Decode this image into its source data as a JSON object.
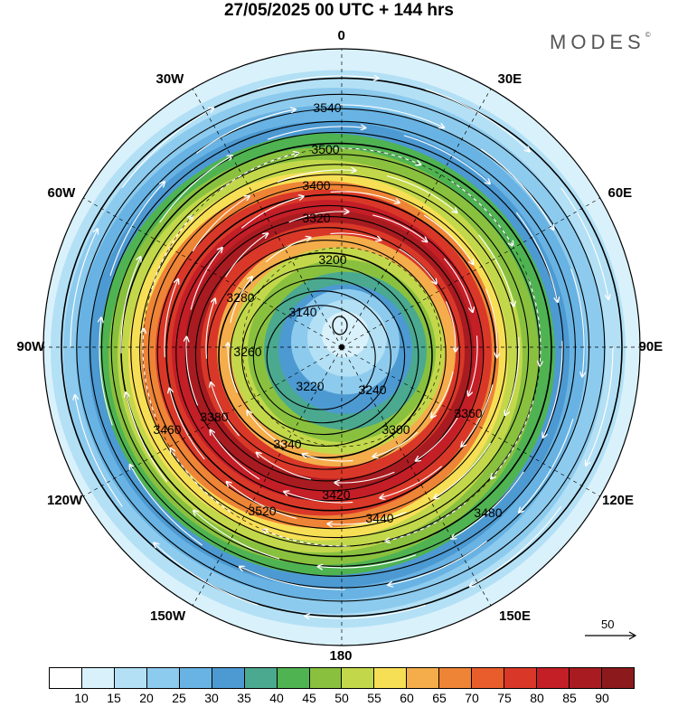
{
  "title": "27/05/2025  00 UTC  + 144 hrs",
  "brand": "MODES",
  "brand_mark": "©",
  "longitude_labels": [
    "0",
    "30E",
    "60E",
    "90E",
    "120E",
    "150E",
    "180",
    "150W",
    "120W",
    "90W",
    "60W",
    "30W"
  ],
  "contour_labels": [
    "3140",
    "3200",
    "3220",
    "3240",
    "3260",
    "3280",
    "3300",
    "3320",
    "3340",
    "3360",
    "3380",
    "3400",
    "3420",
    "3440",
    "3460",
    "3480",
    "3500",
    "3520",
    "3540"
  ],
  "wind_reference": {
    "label": "50"
  },
  "colorbar": {
    "ticks": [
      "10",
      "15",
      "20",
      "25",
      "30",
      "35",
      "40",
      "45",
      "50",
      "55",
      "60",
      "65",
      "70",
      "75",
      "80",
      "85",
      "90"
    ],
    "colors": [
      "#ffffff",
      "#d9f1fb",
      "#b3e0f5",
      "#8dcbee",
      "#68b3e3",
      "#4d9ad2",
      "#4aa98f",
      "#4fb352",
      "#89c13f",
      "#c2d84a",
      "#f7df55",
      "#f4ad4a",
      "#ee8436",
      "#e85d2b",
      "#d93828",
      "#c41e27",
      "#a81b20",
      "#8c1a1c"
    ]
  }
}
